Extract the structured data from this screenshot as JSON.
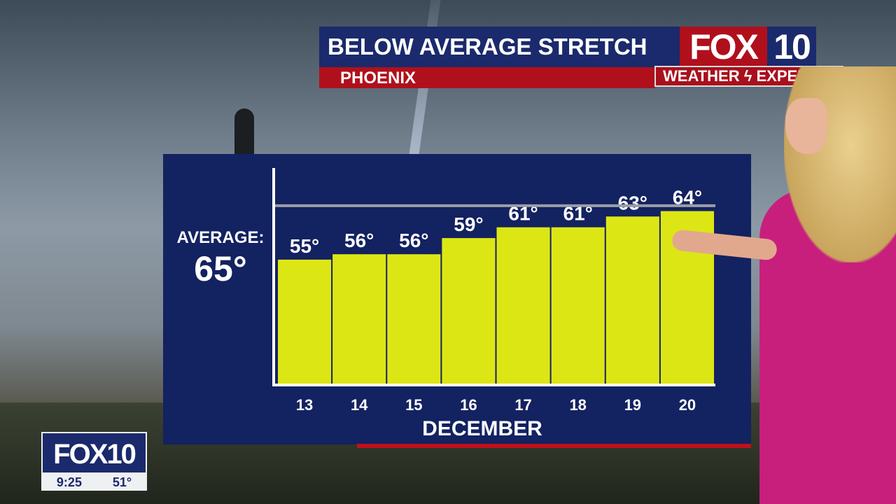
{
  "header": {
    "title": "BELOW AVERAGE STRETCH",
    "location": "PHOENIX"
  },
  "logo": {
    "fox": "FOX",
    "ten": "10",
    "tagline": "WEATHER",
    "tagline2": "EXPERTS"
  },
  "bug": {
    "logo": "FOX10",
    "time": "9:25",
    "temp": "51°"
  },
  "average": {
    "label": "AVERAGE:",
    "value_label": "65°",
    "value": 65
  },
  "colors": {
    "bar": "#dde615",
    "panel": "#132260",
    "red": "#b0101c",
    "navy": "#1a2a6c",
    "avg_line": "#9a9ea8"
  },
  "chart_data": {
    "type": "bar",
    "title": "BELOW AVERAGE STRETCH",
    "xlabel": "DECEMBER",
    "ylabel": "",
    "categories": [
      "13",
      "14",
      "15",
      "16",
      "17",
      "18",
      "19",
      "20"
    ],
    "values": [
      55,
      56,
      56,
      59,
      61,
      61,
      63,
      64
    ],
    "data_labels": [
      "55°",
      "56°",
      "56°",
      "59°",
      "61°",
      "61°",
      "63°",
      "64°"
    ],
    "reference_line": {
      "label": "AVERAGE:",
      "value": 65
    },
    "ylim": [
      32,
      72
    ],
    "grid": false
  }
}
